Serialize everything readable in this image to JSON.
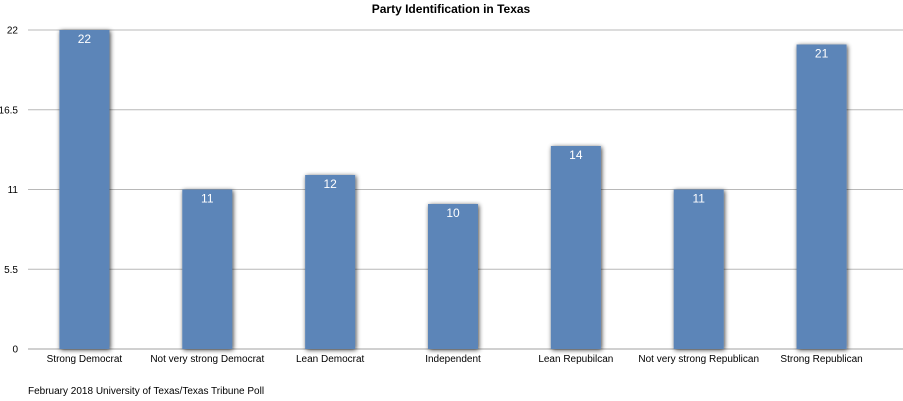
{
  "chart_data": {
    "type": "bar",
    "title": "Party Identification in Texas",
    "categories": [
      "Strong Democrat",
      "Not very strong Democrat",
      "Lean Democrat",
      "Independent",
      "Lean Repubilcan",
      "Not very strong Republican",
      "Strong Republican"
    ],
    "values": [
      22,
      11,
      12,
      10,
      14,
      11,
      21
    ],
    "data_labels": [
      "22",
      "11",
      "12",
      "10",
      "14",
      "11",
      "21"
    ],
    "yticks": [
      0,
      5.5,
      11,
      16.5,
      22
    ],
    "ytick_labels": [
      "0",
      "5.5",
      "11",
      "16.5",
      "22"
    ],
    "ylim": [
      0,
      22
    ],
    "xlabel": "",
    "ylabel": "",
    "grid": true,
    "bar_color": "#5b85b8",
    "source": "February 2018 University of Texas/Texas Tribune Poll"
  }
}
